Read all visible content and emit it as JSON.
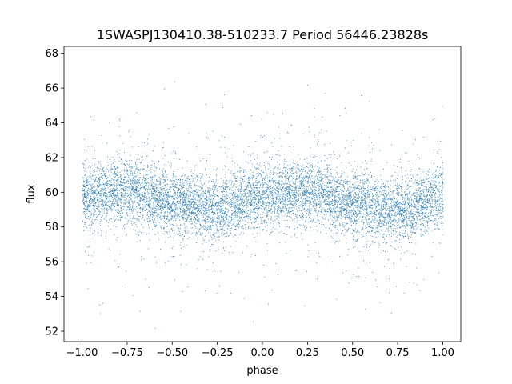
{
  "chart_data": {
    "type": "scatter",
    "title": "1SWASPJ130410.38-510233.7 Period 56446.23828s",
    "xlabel": "phase",
    "ylabel": "flux",
    "xlim": [
      -1.1,
      1.1
    ],
    "ylim": [
      51.4,
      68.4
    ],
    "x_ticks": [
      -1.0,
      -0.75,
      -0.5,
      -0.25,
      0.0,
      0.25,
      0.5,
      0.75,
      1.0
    ],
    "x_tick_labels": [
      "−1.00",
      "−0.75",
      "−0.50",
      "−0.25",
      "0.00",
      "0.25",
      "0.50",
      "0.75",
      "1.00"
    ],
    "y_ticks": [
      52,
      54,
      56,
      58,
      60,
      62,
      64,
      66,
      68
    ],
    "y_tick_labels": [
      "52",
      "54",
      "56",
      "58",
      "60",
      "62",
      "64",
      "66",
      "68"
    ],
    "grid": false,
    "legend": "none",
    "marker_color": "#1f77b4",
    "marker": "point",
    "x_range_of_points": [
      -1.0,
      1.0
    ],
    "series": [
      {
        "values_summary": "dense phase-folded light curve, tens of thousands of points",
        "phase_flux_trend": [
          {
            "phase": -1.0,
            "flux_center": 59.7
          },
          {
            "phase": -0.75,
            "flux_center": 60.2
          },
          {
            "phase": -0.5,
            "flux_center": 59.4
          },
          {
            "phase": -0.25,
            "flux_center": 59.0
          },
          {
            "phase": 0.0,
            "flux_center": 59.8
          },
          {
            "phase": 0.25,
            "flux_center": 60.1
          },
          {
            "phase": 0.5,
            "flux_center": 59.3
          },
          {
            "phase": 0.75,
            "flux_center": 59.0
          },
          {
            "phase": 1.0,
            "flux_center": 59.7
          }
        ],
        "core_spread": 0.9,
        "flux_min": 52.1,
        "flux_max": 67.4
      }
    ]
  }
}
